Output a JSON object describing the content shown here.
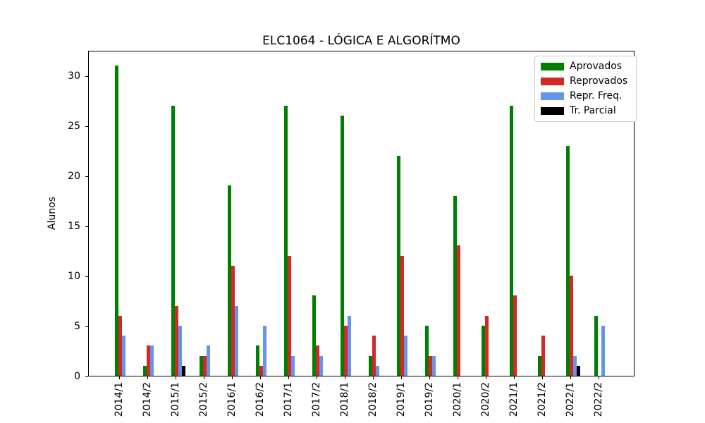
{
  "chart_data": {
    "type": "bar",
    "title": "ELC1064 - LÓGICA E ALGORÍTMO",
    "xlabel": "",
    "ylabel": "Alunos",
    "categories": [
      "2014/1",
      "2014/2",
      "2015/1",
      "2015/2",
      "2016/1",
      "2016/2",
      "2017/1",
      "2017/2",
      "2018/1",
      "2018/2",
      "2019/1",
      "2019/2",
      "2020/1",
      "2020/2",
      "2021/1",
      "2021/2",
      "2022/1",
      "2022/2"
    ],
    "series": [
      {
        "name": "Aprovados",
        "color": "#008000",
        "values": [
          31,
          1,
          27,
          2,
          19,
          3,
          27,
          8,
          26,
          2,
          22,
          5,
          18,
          5,
          27,
          2,
          23,
          6
        ]
      },
      {
        "name": "Reprovados",
        "color": "#d62728",
        "values": [
          6,
          3,
          7,
          2,
          11,
          1,
          12,
          3,
          5,
          4,
          12,
          2,
          13,
          6,
          8,
          4,
          10,
          0
        ]
      },
      {
        "name": "Repr. Freq.",
        "color": "#6495ed",
        "values": [
          4,
          3,
          5,
          3,
          7,
          5,
          2,
          2,
          6,
          1,
          4,
          2,
          0,
          0,
          0,
          0,
          2,
          5
        ]
      },
      {
        "name": "Tr. Parcial",
        "color": "#000000",
        "values": [
          0,
          0,
          1,
          0,
          0,
          0,
          0,
          0,
          0,
          0,
          0,
          0,
          0,
          0,
          0,
          0,
          1,
          0
        ]
      }
    ],
    "ylim": [
      0,
      32.55
    ],
    "yticks": [
      0,
      5,
      10,
      15,
      20,
      25,
      30
    ],
    "grid": false,
    "legend_position": "upper right",
    "background_color": "#ffffff",
    "axis_color": "#000000"
  }
}
